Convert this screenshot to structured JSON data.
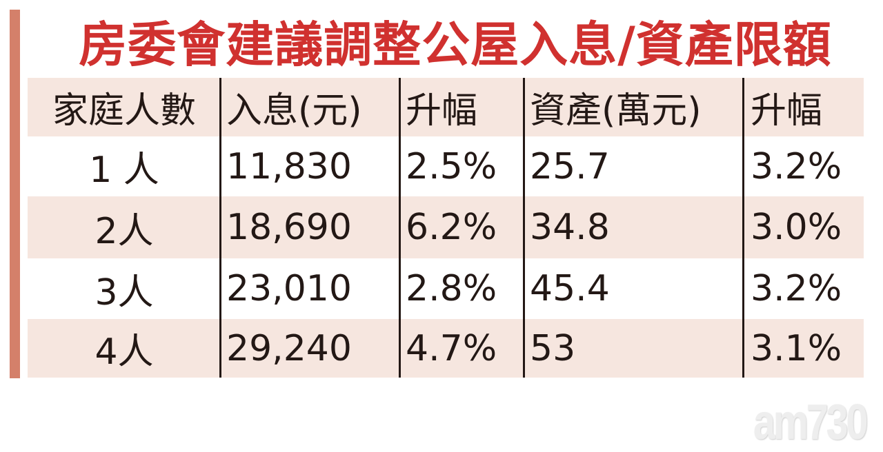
{
  "title": "房委會建議調整公屋入息/資產限額",
  "colors": {
    "title": "#d0312f",
    "row_shade": "#f6e6df",
    "accent_bar": "#d4806a"
  },
  "watermark": "am730",
  "chart_data": {
    "type": "table",
    "title": "房委會建議調整公屋入息/資產限額",
    "columns": [
      "家庭人數",
      "入息(元)",
      "升幅",
      "資產(萬元)",
      "升幅"
    ],
    "rows": [
      [
        "1 人",
        "11,830",
        "2.5%",
        "25.7",
        "3.2%"
      ],
      [
        "2人",
        "18,690",
        "6.2%",
        "34.8",
        "3.0%"
      ],
      [
        "3人",
        "23,010",
        "2.8%",
        "45.4",
        "3.2%"
      ],
      [
        "4人",
        "29,240",
        "4.7%",
        "53",
        "3.1%"
      ]
    ]
  }
}
